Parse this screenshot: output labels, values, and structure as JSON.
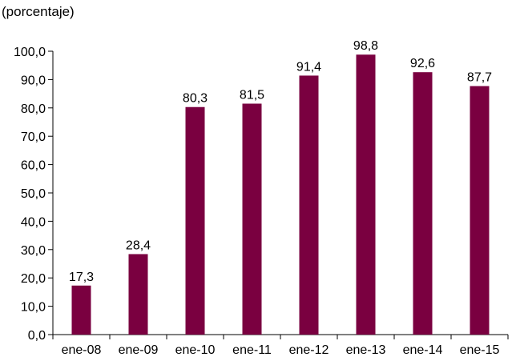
{
  "chart_data": {
    "type": "bar",
    "unit_label": "(porcentaje)",
    "categories": [
      "ene-08",
      "ene-09",
      "ene-10",
      "ene-11",
      "ene-12",
      "ene-13",
      "ene-14",
      "ene-15"
    ],
    "values": [
      17.3,
      28.4,
      80.3,
      81.5,
      91.4,
      98.8,
      92.6,
      87.7
    ],
    "value_labels": [
      "17,3",
      "28,4",
      "80,3",
      "81,5",
      "91,4",
      "98,8",
      "92,6",
      "87,7"
    ],
    "ylim": [
      0,
      100
    ],
    "yticks": [
      0,
      10,
      20,
      30,
      40,
      50,
      60,
      70,
      80,
      90,
      100
    ],
    "ytick_labels": [
      "0,0",
      "10,0",
      "20,0",
      "30,0",
      "40,0",
      "50,0",
      "60,0",
      "70,0",
      "80,0",
      "90,0",
      "100,0"
    ],
    "bar_color": "#7a0040",
    "grid": false,
    "legend": "none"
  }
}
